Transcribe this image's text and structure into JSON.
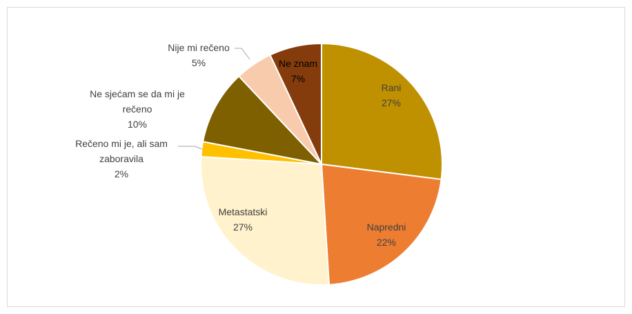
{
  "chart_data": {
    "type": "pie",
    "categories": [
      "Rani",
      "Napredni",
      "Metastatski",
      "Rečeno mi je, ali sam zaboravila",
      "Ne sjećam se da mi je rečeno",
      "Nije mi rečeno",
      "Ne znam"
    ],
    "values": [
      27,
      22,
      27,
      2,
      10,
      5,
      7
    ],
    "value_labels": [
      "27%",
      "22%",
      "27%",
      "2%",
      "10%",
      "5%",
      "7%"
    ],
    "colors": [
      "#bf9000",
      "#ed7d31",
      "#fff2cc",
      "#ffc000",
      "#7f6000",
      "#f8cbad",
      "#843c0c"
    ]
  }
}
